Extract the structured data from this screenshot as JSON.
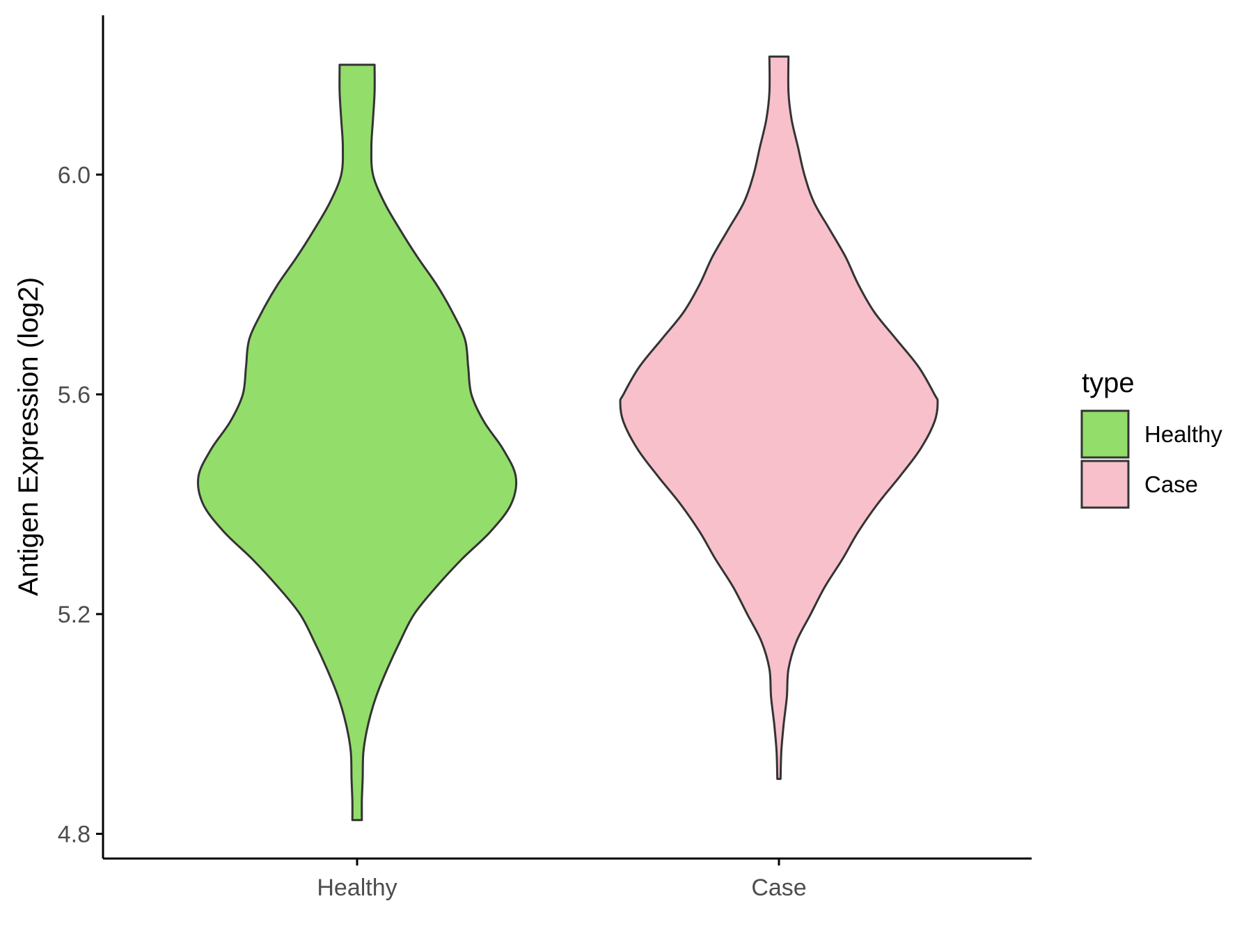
{
  "chart_data": {
    "type": "violin",
    "ylabel": "Antigen Expression (log2)",
    "xlabel": "",
    "ylim": [
      4.755,
      6.29
    ],
    "y_ticks": [
      4.8,
      5.2,
      5.6,
      6.0
    ],
    "y_tick_labels": [
      "4.8",
      "5.2",
      "5.6",
      "6.0"
    ],
    "categories": [
      "Healthy",
      "Case"
    ],
    "legend": {
      "title": "type",
      "position": "right",
      "entries": [
        {
          "label": "Healthy",
          "color": "#93dd6b"
        },
        {
          "label": "Case",
          "color": "#f7c0cb"
        }
      ]
    },
    "series": [
      {
        "category": "Healthy",
        "color": "#93dd6b",
        "min": 4.825,
        "max": 6.2,
        "density_profile": [
          [
            4.825,
            0.03
          ],
          [
            4.86,
            0.03
          ],
          [
            4.9,
            0.035
          ],
          [
            4.95,
            0.04
          ],
          [
            5.0,
            0.07
          ],
          [
            5.05,
            0.12
          ],
          [
            5.1,
            0.19
          ],
          [
            5.15,
            0.27
          ],
          [
            5.2,
            0.36
          ],
          [
            5.25,
            0.5
          ],
          [
            5.3,
            0.66
          ],
          [
            5.35,
            0.84
          ],
          [
            5.4,
            0.97
          ],
          [
            5.45,
            1.0
          ],
          [
            5.5,
            0.92
          ],
          [
            5.55,
            0.8
          ],
          [
            5.6,
            0.72
          ],
          [
            5.65,
            0.7
          ],
          [
            5.7,
            0.68
          ],
          [
            5.75,
            0.6
          ],
          [
            5.8,
            0.5
          ],
          [
            5.85,
            0.38
          ],
          [
            5.9,
            0.27
          ],
          [
            5.95,
            0.17
          ],
          [
            6.0,
            0.1
          ],
          [
            6.05,
            0.09
          ],
          [
            6.1,
            0.1
          ],
          [
            6.15,
            0.11
          ],
          [
            6.2,
            0.11
          ]
        ]
      },
      {
        "category": "Case",
        "color": "#f7c0cb",
        "min": 4.9,
        "max": 6.215,
        "density_profile": [
          [
            4.9,
            0.01
          ],
          [
            4.95,
            0.015
          ],
          [
            5.0,
            0.03
          ],
          [
            5.05,
            0.05
          ],
          [
            5.1,
            0.06
          ],
          [
            5.15,
            0.11
          ],
          [
            5.2,
            0.2
          ],
          [
            5.25,
            0.29
          ],
          [
            5.3,
            0.4
          ],
          [
            5.35,
            0.5
          ],
          [
            5.4,
            0.62
          ],
          [
            5.45,
            0.76
          ],
          [
            5.5,
            0.89
          ],
          [
            5.55,
            0.98
          ],
          [
            5.585,
            1.0
          ],
          [
            5.6,
            0.98
          ],
          [
            5.65,
            0.88
          ],
          [
            5.7,
            0.74
          ],
          [
            5.75,
            0.6
          ],
          [
            5.8,
            0.5
          ],
          [
            5.85,
            0.42
          ],
          [
            5.9,
            0.32
          ],
          [
            5.95,
            0.22
          ],
          [
            6.0,
            0.16
          ],
          [
            6.05,
            0.12
          ],
          [
            6.1,
            0.08
          ],
          [
            6.15,
            0.06
          ],
          [
            6.215,
            0.06
          ]
        ]
      }
    ]
  }
}
